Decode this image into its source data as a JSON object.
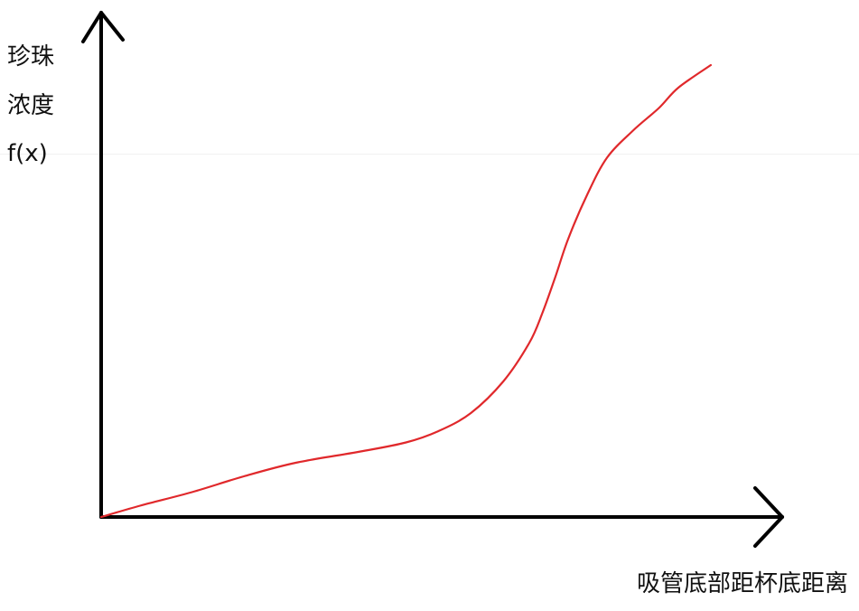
{
  "chart_data": {
    "type": "line",
    "title": "",
    "ylabel_lines": [
      "珍珠",
      "浓度",
      "f(x)"
    ],
    "xlabel": "吸管底部距杯底距离",
    "grid": false,
    "legend": "none",
    "series": [
      {
        "values": [
          [
            0.0,
            0.0
          ],
          [
            0.06,
            0.025
          ],
          [
            0.14,
            0.055
          ],
          [
            0.22,
            0.09
          ],
          [
            0.3,
            0.12
          ],
          [
            0.4,
            0.145
          ],
          [
            0.47,
            0.165
          ],
          [
            0.52,
            0.19
          ],
          [
            0.57,
            0.23
          ],
          [
            0.62,
            0.3
          ],
          [
            0.66,
            0.385
          ],
          [
            0.68,
            0.45
          ],
          [
            0.7,
            0.53
          ],
          [
            0.72,
            0.615
          ],
          [
            0.75,
            0.715
          ],
          [
            0.78,
            0.795
          ],
          [
            0.82,
            0.855
          ],
          [
            0.86,
            0.905
          ],
          [
            0.89,
            0.95
          ],
          [
            0.94,
            1.0
          ]
        ],
        "color": "#e0282b"
      }
    ],
    "axis_color": "#000000"
  }
}
